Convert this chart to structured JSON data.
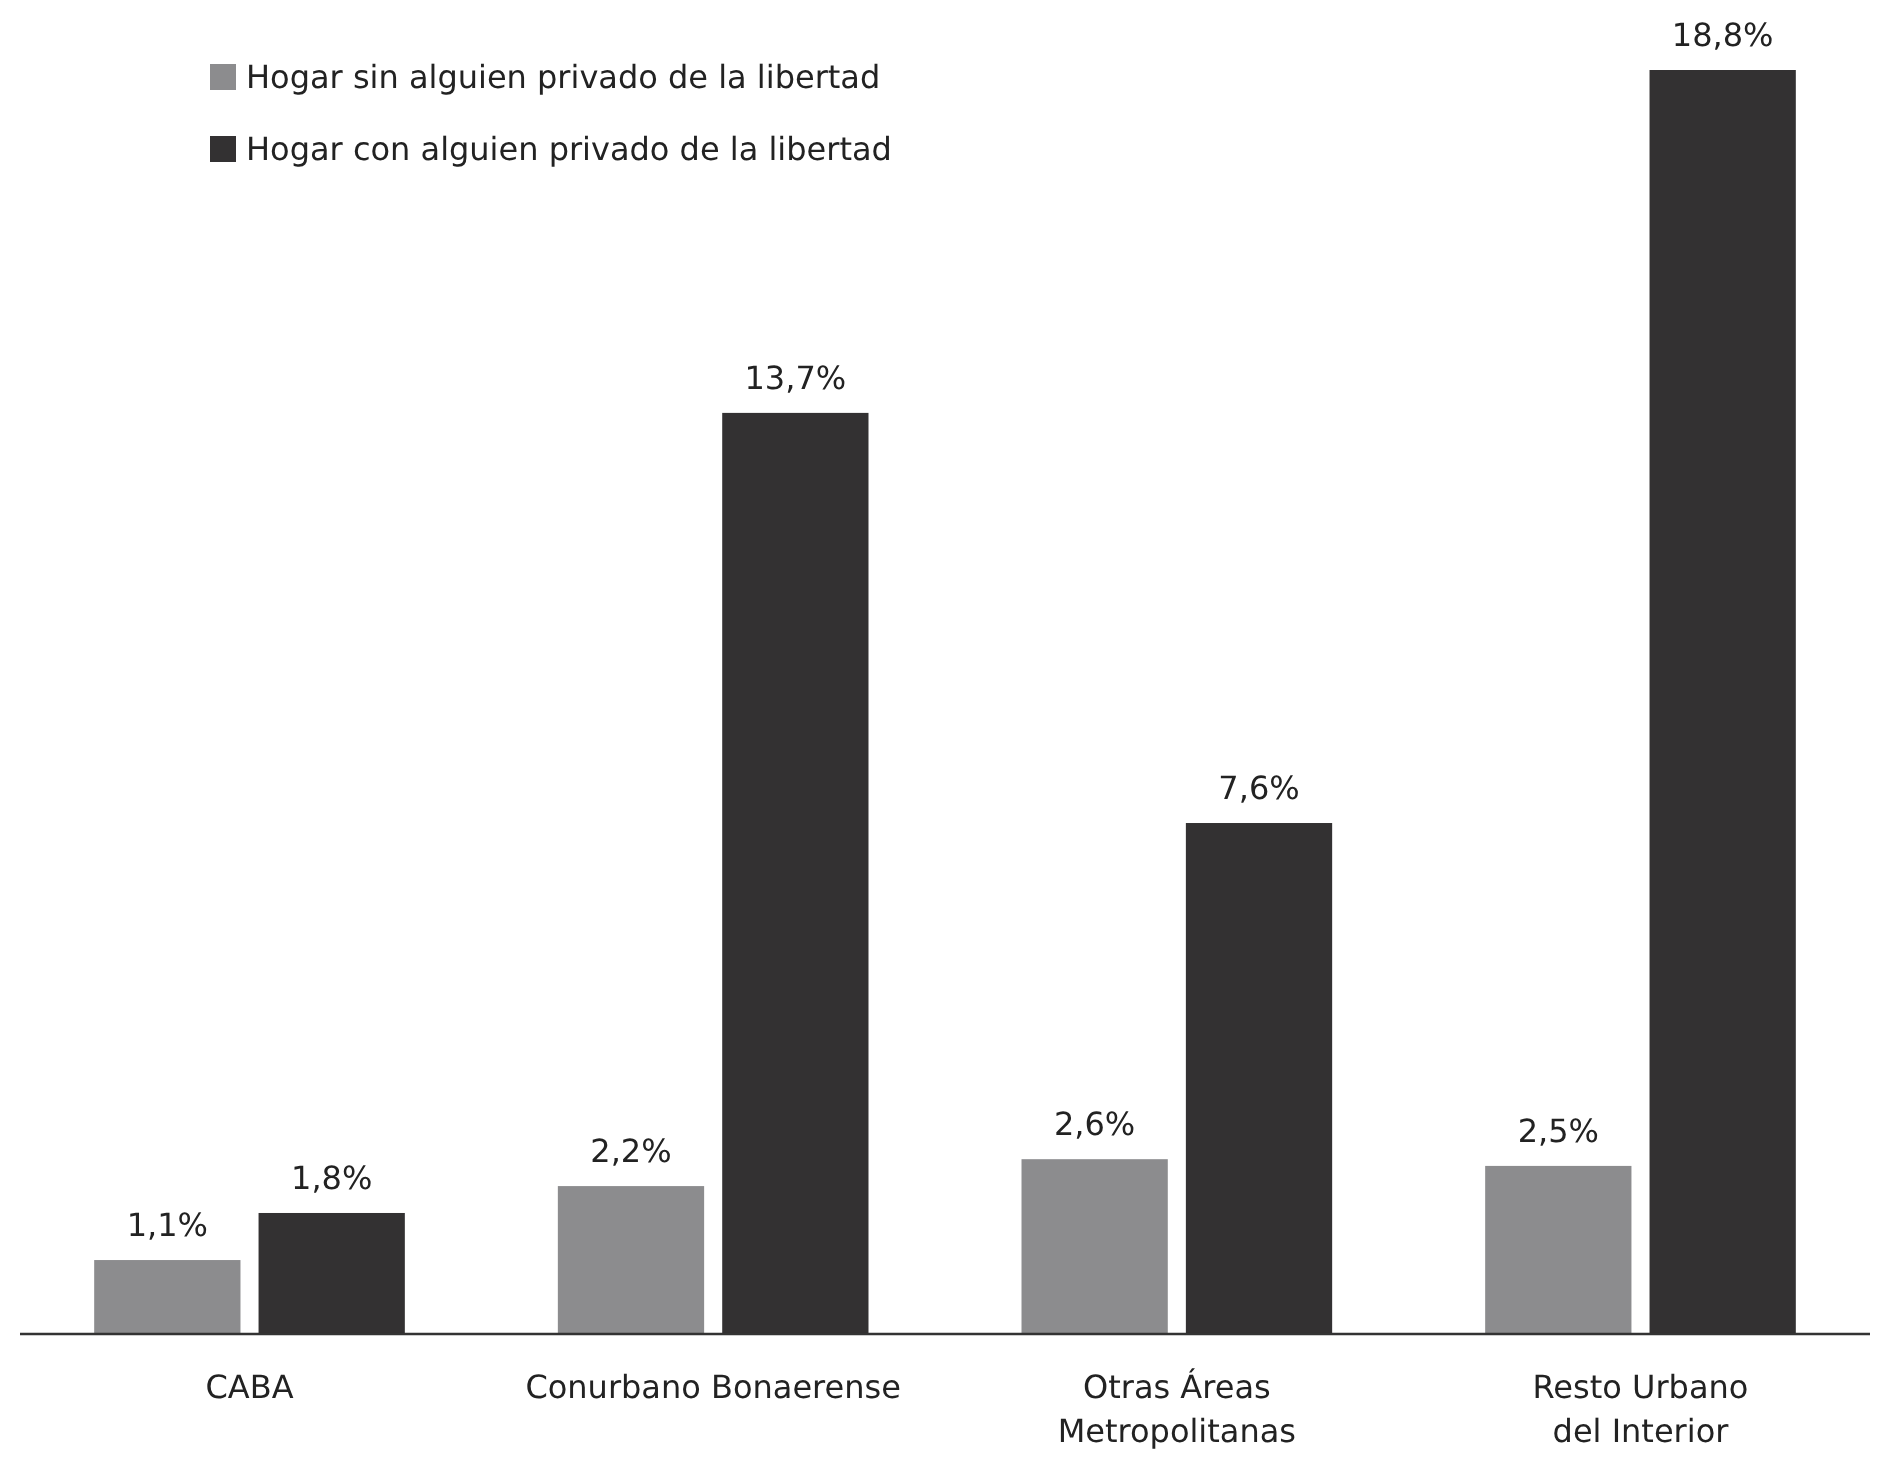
{
  "chart_data": {
    "type": "bar",
    "categories": [
      "CABA",
      "Conurbano Bonaerense",
      "Otras Áreas\nMetropolitanas",
      "Resto Urbano\ndel Interior"
    ],
    "series": [
      {
        "name": "Hogar sin alguien privado de la libertad",
        "color": "#8c8c8e",
        "values": [
          1.1,
          2.2,
          2.6,
          2.5
        ],
        "value_labels": [
          "1,1%",
          "2,2%",
          "2,6%",
          "2,5%"
        ]
      },
      {
        "name": "Hogar con alguien privado de la libertad",
        "color": "#333132",
        "values": [
          1.8,
          13.7,
          7.6,
          18.8
        ],
        "value_labels": [
          "1,8%",
          "13,7%",
          "7,6%",
          "18,8%"
        ]
      }
    ],
    "legend": "top left",
    "grid": false
  }
}
